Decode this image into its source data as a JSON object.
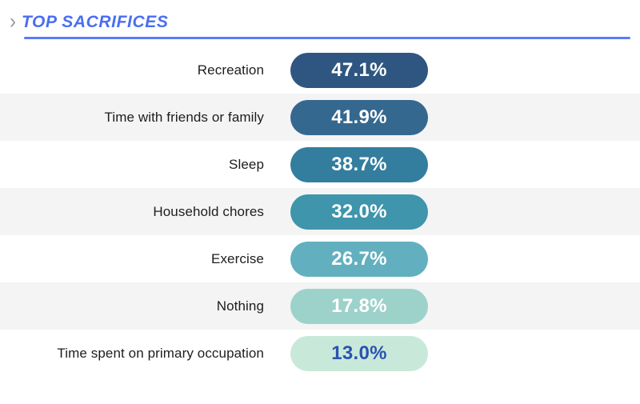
{
  "header": {
    "chevron": "›",
    "title": "TOP SACRIFICES",
    "title_color": "#4a6ef0",
    "underline_color": "#5b7afa"
  },
  "chart_data": {
    "type": "bar",
    "title": "TOP SACRIFICES",
    "orientation": "horizontal",
    "categories": [
      "Recreation",
      "Time with friends or family",
      "Sleep",
      "Household chores",
      "Exercise",
      "Nothing",
      "Time spent on primary occupation"
    ],
    "values": [
      47.1,
      41.9,
      38.7,
      32.0,
      26.7,
      17.8,
      13.0
    ],
    "value_unit": "%",
    "legend": "none",
    "grid": "off",
    "rows": [
      {
        "label": "Recreation",
        "value": 47.1,
        "value_label": "47.1%",
        "pill_color": "#2e5680",
        "value_color": "#ffffff",
        "row_bg": "#ffffff"
      },
      {
        "label": "Time with friends or family",
        "value": 41.9,
        "value_label": "41.9%",
        "pill_color": "#35688f",
        "value_color": "#ffffff",
        "row_bg": "#f4f4f4"
      },
      {
        "label": "Sleep",
        "value": 38.7,
        "value_label": "38.7%",
        "pill_color": "#337d9f",
        "value_color": "#ffffff",
        "row_bg": "#ffffff"
      },
      {
        "label": "Household chores",
        "value": 32.0,
        "value_label": "32.0%",
        "pill_color": "#3e95ac",
        "value_color": "#ffffff",
        "row_bg": "#f4f4f4"
      },
      {
        "label": "Exercise",
        "value": 26.7,
        "value_label": "26.7%",
        "pill_color": "#62b0bf",
        "value_color": "#ffffff",
        "row_bg": "#ffffff"
      },
      {
        "label": "Nothing",
        "value": 17.8,
        "value_label": "17.8%",
        "pill_color": "#9dd2cb",
        "value_color": "#ffffff",
        "row_bg": "#f4f4f4"
      },
      {
        "label": "Time spent on primary occupation",
        "value": 13.0,
        "value_label": "13.0%",
        "pill_color": "#c8e9da",
        "value_color": "#2a52b0",
        "row_bg": "#ffffff"
      }
    ]
  }
}
